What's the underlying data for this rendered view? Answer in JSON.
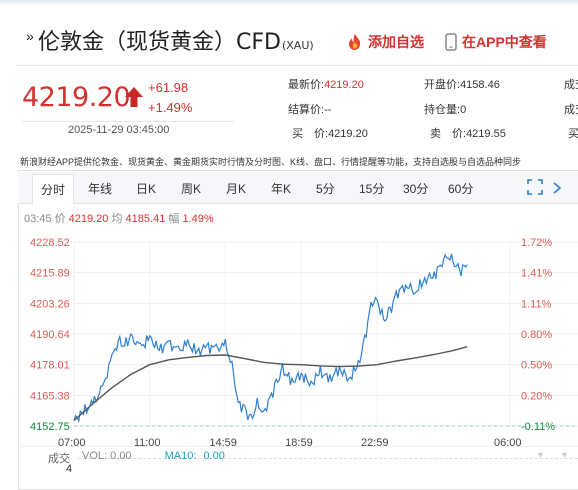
{
  "header": {
    "title": "伦敦金（现货黄金）CFD",
    "title_suffix": "(XAU)",
    "add_favorite": "添加自选",
    "open_app": "在APP中查看"
  },
  "price": {
    "last": "4219.20",
    "change": "+61.98",
    "change_pct": "+1.49%",
    "timestamp": "2025-11-29 03:45:00"
  },
  "quote": {
    "latest_label": "最新价:",
    "latest": "4219.20",
    "open_label": "开盘价:",
    "open": "4158.46",
    "settle_label": "结算价:",
    "settle": "--",
    "hold_label": "持仓量:",
    "hold": "0",
    "turnover_label": "成交",
    "bid_label": "买　价:",
    "bid": "4219.20",
    "ask_label": "卖　价:",
    "ask": "4219.55",
    "buy_qty_label": "买"
  },
  "disclaimer": "新浪财经APP提供伦敦金、现货黄金、黄金期货实时行情及分时图、K线、盘口、行情提醒等功能，支持自选股与自选品种同步",
  "tabs": [
    {
      "label": "分时",
      "active": true
    },
    {
      "label": "年线"
    },
    {
      "label": "日K"
    },
    {
      "label": "周K"
    },
    {
      "label": "月K"
    },
    {
      "label": "年K"
    },
    {
      "label": "5分"
    },
    {
      "label": "15分"
    },
    {
      "label": "30分"
    },
    {
      "label": "60分"
    }
  ],
  "info": {
    "time": "03:45",
    "price_label": "价",
    "price": "4219.20",
    "avg_label": "均",
    "avg": "4185.41",
    "amp_label": "幅",
    "amp": "1.49%"
  },
  "chart_data": {
    "type": "line",
    "y_ticks": [
      "4228.52",
      "4215.89",
      "4203.26",
      "4190.64",
      "4178.01",
      "4165.38",
      "4152.75"
    ],
    "y_right_ticks": [
      "1.72%",
      "1.41%",
      "1.11%",
      "0.80%",
      "0.50%",
      "0.20%",
      "-0.11%"
    ],
    "x_ticks": [
      "07:00",
      "11:00",
      "14:59",
      "18:59",
      "22:59",
      "06:00"
    ],
    "ylim": [
      4152.75,
      4228.52
    ],
    "series": [
      {
        "color": "#2f7fd1",
        "x": [
          "07:00",
          "07:30",
          "08:00",
          "08:30",
          "09:00",
          "09:20",
          "09:40",
          "10:00",
          "10:30",
          "11:00",
          "11:30",
          "12:00",
          "12:30",
          "13:00",
          "13:30",
          "14:00",
          "14:30",
          "14:59",
          "15:20",
          "15:40",
          "16:00",
          "16:20",
          "16:40",
          "17:00",
          "17:20",
          "17:40",
          "18:00",
          "18:30",
          "18:59",
          "19:30",
          "20:00",
          "20:30",
          "21:00",
          "21:30",
          "22:00",
          "22:20",
          "22:40",
          "22:59",
          "23:20",
          "23:40",
          "00:00",
          "00:30",
          "01:00",
          "01:30",
          "02:00",
          "02:20",
          "02:40",
          "03:00",
          "03:20",
          "03:45"
        ],
        "values": [
          4155.0,
          4158.5,
          4162.0,
          4168.0,
          4181.0,
          4188.0,
          4186.0,
          4189.5,
          4185.0,
          4189.0,
          4184.0,
          4187.0,
          4183.5,
          4186.5,
          4183.0,
          4185.5,
          4184.5,
          4186.0,
          4178.0,
          4162.0,
          4160.0,
          4155.0,
          4162.0,
          4158.0,
          4164.0,
          4170.0,
          4176.0,
          4171.0,
          4174.0,
          4170.0,
          4175.0,
          4172.0,
          4176.5,
          4172.0,
          4178.0,
          4188.0,
          4203.0,
          4205.0,
          4196.0,
          4200.0,
          4207.0,
          4211.0,
          4208.0,
          4213.0,
          4215.0,
          4219.0,
          4223.0,
          4220.5,
          4216.5,
          4219.2
        ]
      },
      {
        "name": "均",
        "color": "#555555",
        "x": [
          "07:00",
          "08:00",
          "09:00",
          "10:00",
          "11:00",
          "12:00",
          "13:00",
          "14:00",
          "14:59",
          "16:00",
          "17:00",
          "18:00",
          "18:59",
          "20:00",
          "21:00",
          "22:00",
          "22:59",
          "00:00",
          "01:00",
          "02:00",
          "03:00",
          "03:45"
        ],
        "values": [
          4155.0,
          4162.0,
          4168.5,
          4174.0,
          4178.0,
          4180.0,
          4181.0,
          4181.8,
          4182.0,
          4180.5,
          4179.0,
          4178.2,
          4178.0,
          4177.5,
          4177.2,
          4177.4,
          4178.0,
          4179.5,
          4180.8,
          4182.2,
          4183.8,
          4185.41
        ]
      }
    ]
  },
  "volume": {
    "label": "成交",
    "vol_label": "VOL:",
    "vol": "0.00",
    "ma_label": "MA10:",
    "ma": "0.00",
    "count": "4"
  }
}
